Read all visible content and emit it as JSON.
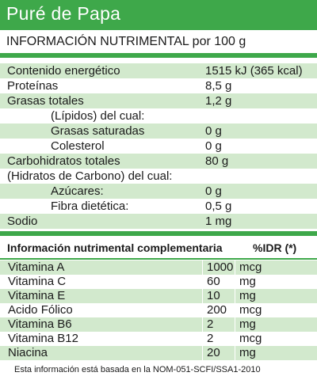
{
  "title": "Puré de Papa",
  "subtitle": "INFORMACIÓN NUTRIMENTAL por 100 g",
  "nutrition": [
    {
      "label": "Contenido energético",
      "value": "1515 kJ (365 kcal)"
    },
    {
      "label": "Proteínas",
      "value": "8,5 g"
    },
    {
      "label": "Grasas totales",
      "value": "1,2 g"
    },
    {
      "label": "(Lípidos) del cual:",
      "value": ""
    },
    {
      "label": "Grasas saturadas",
      "value": "0 g"
    },
    {
      "label": "Colesterol",
      "value": "0 g"
    },
    {
      "label": "Carbohidratos totales",
      "value": "80 g"
    },
    {
      "label": "(Hidratos de Carbono) del cual:",
      "value": ""
    },
    {
      "label": "Azúcares:",
      "value": "0 g"
    },
    {
      "label": "Fibra dietética:",
      "value": "0,5 g"
    },
    {
      "label": "Sodio",
      "value": "1 mg"
    }
  ],
  "complementary": {
    "heading": "Información nutrimental complementaria",
    "idr_label": "%IDR (*)",
    "rows": [
      {
        "name": "Vitamina A",
        "amount": "1000",
        "unit": "mcg"
      },
      {
        "name": "Vitamina C",
        "amount": "60",
        "unit": "mg"
      },
      {
        "name": "Vitamina E",
        "amount": "10",
        "unit": "mg"
      },
      {
        "name": "Acido Fólico",
        "amount": "200",
        "unit": "mcg"
      },
      {
        "name": "Vitamina B6",
        "amount": "2",
        "unit": "mg"
      },
      {
        "name": "Vitamina B12",
        "amount": "2",
        "unit": "mcg"
      },
      {
        "name": "Niacina",
        "amount": "20",
        "unit": "mg"
      }
    ]
  },
  "footnote": "Esta información está basada en la NOM-051-SCFI/SSA1-2010",
  "colors": {
    "accent": "#3ea84a",
    "row_shade": "#d2e9cd"
  }
}
